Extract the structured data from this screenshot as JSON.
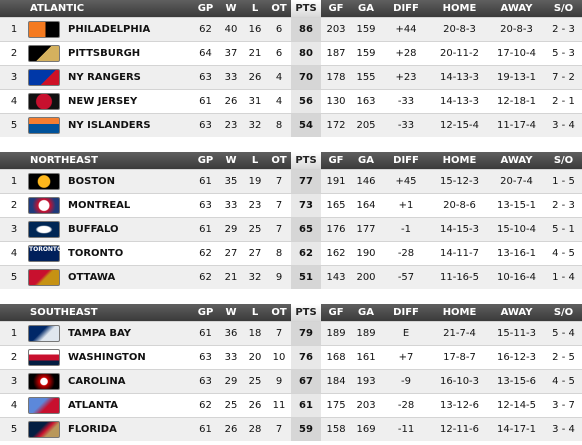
{
  "columns": {
    "gp": "GP",
    "w": "W",
    "l": "L",
    "ot": "OT",
    "pts": "PTS",
    "gf": "GF",
    "ga": "GA",
    "diff": "DIFF",
    "home": "HOME",
    "away": "AWAY",
    "so": "S/O"
  },
  "divisions": [
    {
      "name": "ATLANTIC",
      "rows": [
        {
          "rank": "1",
          "logo": "flyers-logo-icon",
          "team": "PHILADELPHIA",
          "gp": "62",
          "w": "40",
          "l": "16",
          "ot": "6",
          "pts": "86",
          "gf": "203",
          "ga": "159",
          "diff": "+44",
          "home": "20-8-3",
          "away": "20-8-3",
          "so": "2 - 3"
        },
        {
          "rank": "2",
          "logo": "penguins-logo-icon",
          "team": "PITTSBURGH",
          "gp": "64",
          "w": "37",
          "l": "21",
          "ot": "6",
          "pts": "80",
          "gf": "187",
          "ga": "159",
          "diff": "+28",
          "home": "20-11-2",
          "away": "17-10-4",
          "so": "5 - 3"
        },
        {
          "rank": "3",
          "logo": "rangers-logo-icon",
          "team": "NY RANGERS",
          "gp": "63",
          "w": "33",
          "l": "26",
          "ot": "4",
          "pts": "70",
          "gf": "178",
          "ga": "155",
          "diff": "+23",
          "home": "14-13-3",
          "away": "19-13-1",
          "so": "7 - 2"
        },
        {
          "rank": "4",
          "logo": "devils-logo-icon",
          "team": "NEW JERSEY",
          "gp": "61",
          "w": "26",
          "l": "31",
          "ot": "4",
          "pts": "56",
          "gf": "130",
          "ga": "163",
          "diff": "-33",
          "home": "14-13-3",
          "away": "12-18-1",
          "so": "2 - 1"
        },
        {
          "rank": "5",
          "logo": "islanders-logo-icon",
          "team": "NY ISLANDERS",
          "gp": "63",
          "w": "23",
          "l": "32",
          "ot": "8",
          "pts": "54",
          "gf": "172",
          "ga": "205",
          "diff": "-33",
          "home": "12-15-4",
          "away": "11-17-4",
          "so": "3 - 4"
        }
      ]
    },
    {
      "name": "NORTHEAST",
      "rows": [
        {
          "rank": "1",
          "logo": "bruins-logo-icon",
          "team": "BOSTON",
          "gp": "61",
          "w": "35",
          "l": "19",
          "ot": "7",
          "pts": "77",
          "gf": "191",
          "ga": "146",
          "diff": "+45",
          "home": "15-12-3",
          "away": "20-7-4",
          "so": "1 - 5"
        },
        {
          "rank": "2",
          "logo": "canadiens-logo-icon",
          "team": "MONTREAL",
          "gp": "63",
          "w": "33",
          "l": "23",
          "ot": "7",
          "pts": "73",
          "gf": "165",
          "ga": "164",
          "diff": "+1",
          "home": "20-8-6",
          "away": "13-15-1",
          "so": "2 - 3"
        },
        {
          "rank": "3",
          "logo": "sabres-logo-icon",
          "team": "BUFFALO",
          "gp": "61",
          "w": "29",
          "l": "25",
          "ot": "7",
          "pts": "65",
          "gf": "176",
          "ga": "177",
          "diff": "-1",
          "home": "14-15-3",
          "away": "15-10-4",
          "so": "5 - 1"
        },
        {
          "rank": "4",
          "logo": "maple-leafs-logo-icon",
          "logo_text": "TORONTO MAPLE LEAFS",
          "team": "TORONTO",
          "gp": "62",
          "w": "27",
          "l": "27",
          "ot": "8",
          "pts": "62",
          "gf": "162",
          "ga": "190",
          "diff": "-28",
          "home": "14-11-7",
          "away": "13-16-1",
          "so": "4 - 5"
        },
        {
          "rank": "5",
          "logo": "senators-logo-icon",
          "team": "OTTAWA",
          "gp": "62",
          "w": "21",
          "l": "32",
          "ot": "9",
          "pts": "51",
          "gf": "143",
          "ga": "200",
          "diff": "-57",
          "home": "11-16-5",
          "away": "10-16-4",
          "so": "1 - 4"
        }
      ]
    },
    {
      "name": "SOUTHEAST",
      "rows": [
        {
          "rank": "1",
          "logo": "lightning-logo-icon",
          "team": "TAMPA BAY",
          "gp": "61",
          "w": "36",
          "l": "18",
          "ot": "7",
          "pts": "79",
          "gf": "189",
          "ga": "189",
          "diff": "E",
          "home": "21-7-4",
          "away": "15-11-3",
          "so": "5 - 4"
        },
        {
          "rank": "2",
          "logo": "capitals-logo-icon",
          "team": "WASHINGTON",
          "gp": "63",
          "w": "33",
          "l": "20",
          "ot": "10",
          "pts": "76",
          "gf": "168",
          "ga": "161",
          "diff": "+7",
          "home": "17-8-7",
          "away": "16-12-3",
          "so": "2 - 5"
        },
        {
          "rank": "3",
          "logo": "hurricanes-logo-icon",
          "team": "CAROLINA",
          "gp": "63",
          "w": "29",
          "l": "25",
          "ot": "9",
          "pts": "67",
          "gf": "184",
          "ga": "193",
          "diff": "-9",
          "home": "16-10-3",
          "away": "13-15-6",
          "so": "4 - 5"
        },
        {
          "rank": "4",
          "logo": "thrashers-logo-icon",
          "team": "ATLANTA",
          "gp": "62",
          "w": "25",
          "l": "26",
          "ot": "11",
          "pts": "61",
          "gf": "175",
          "ga": "203",
          "diff": "-28",
          "home": "13-12-6",
          "away": "12-14-5",
          "so": "3 - 7"
        },
        {
          "rank": "5",
          "logo": "panthers-logo-icon",
          "team": "FLORIDA",
          "gp": "61",
          "w": "26",
          "l": "28",
          "ot": "7",
          "pts": "59",
          "gf": "158",
          "ga": "169",
          "diff": "-11",
          "home": "12-11-6",
          "away": "14-17-1",
          "so": "3 - 4"
        }
      ]
    }
  ]
}
